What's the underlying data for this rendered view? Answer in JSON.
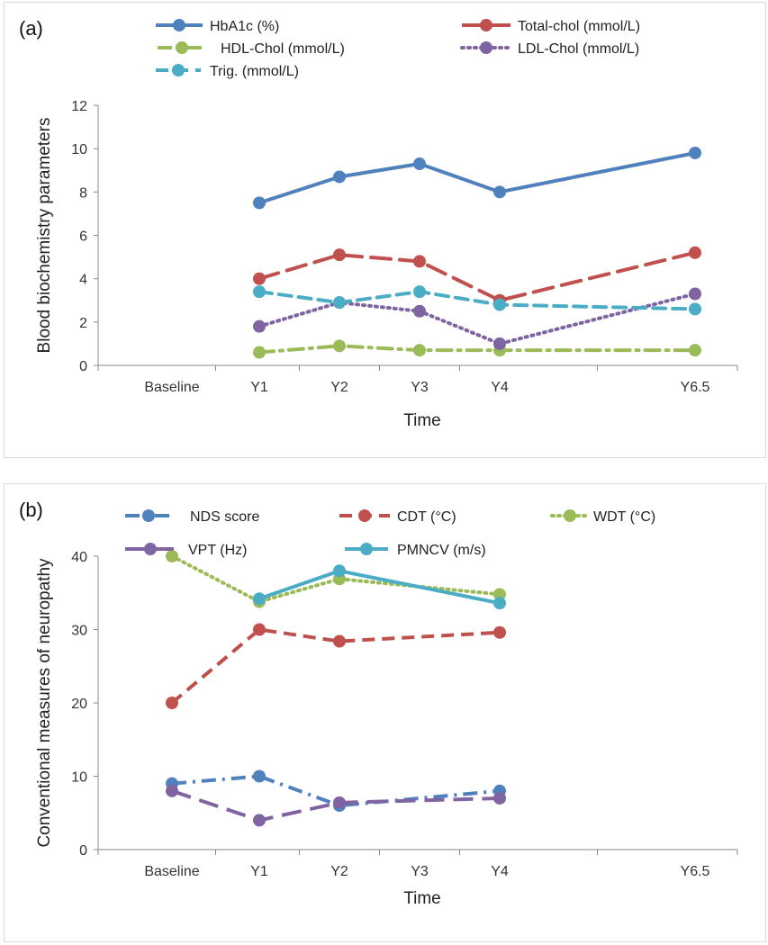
{
  "chart_data": [
    {
      "type": "line",
      "panel_label": "(a)",
      "categories": [
        "Baseline",
        "Y1",
        "Y2",
        "Y3",
        "Y4",
        "Y6.5"
      ],
      "xlabel": "Time",
      "ylabel": "Blood biochemistry parameters",
      "ylim": [
        0,
        12
      ],
      "yticks": [
        "0",
        "2",
        "4",
        "6",
        "8",
        "10",
        "12"
      ],
      "series": [
        {
          "name": "HbA1c (%)",
          "color": "#4f81bd",
          "dash": "solid",
          "x": [
            "Y1",
            "Y2",
            "Y3",
            "Y4",
            "Y6.5"
          ],
          "values": [
            7.5,
            8.7,
            9.3,
            8.0,
            9.8
          ]
        },
        {
          "name": "Total-chol (mmol/L)",
          "color": "#c0504d",
          "dash": "long-dash",
          "x": [
            "Y1",
            "Y2",
            "Y3",
            "Y4",
            "Y6.5"
          ],
          "values": [
            4.0,
            5.1,
            4.8,
            3.0,
            5.2
          ]
        },
        {
          "name": "HDL-Chol (mmol/L)",
          "color": "#9bbb59",
          "dash": "dash-dot",
          "x": [
            "Y1",
            "Y2",
            "Y3",
            "Y4",
            "Y6.5"
          ],
          "values": [
            0.6,
            0.9,
            0.7,
            0.7,
            0.7
          ]
        },
        {
          "name": "LDL-Chol (mmol/L)",
          "color": "#8064a2",
          "dash": "dotted",
          "x": [
            "Y1",
            "Y2",
            "Y3",
            "Y4",
            "Y6.5"
          ],
          "values": [
            1.8,
            2.9,
            2.5,
            1.0,
            3.3
          ]
        },
        {
          "name": "Trig. (mmol/L)",
          "color": "#4bacc6",
          "dash": "dash",
          "x": [
            "Y1",
            "Y2",
            "Y3",
            "Y4",
            "Y6.5"
          ],
          "values": [
            3.4,
            2.9,
            3.4,
            2.8,
            2.6
          ]
        }
      ]
    },
    {
      "type": "line",
      "panel_label": "(b)",
      "categories": [
        "Baseline",
        "Y1",
        "Y2",
        "Y3",
        "Y4",
        "Y6.5"
      ],
      "xlabel": "Time",
      "ylabel": "Conventional measures of neuropathy",
      "ylim": [
        0,
        40
      ],
      "yticks": [
        "0",
        "10",
        "20",
        "30",
        "40"
      ],
      "series": [
        {
          "name": "NDS score",
          "color": "#4f81bd",
          "dash": "dash-dot",
          "x": [
            "Baseline",
            "Y1",
            "Y2",
            "Y4"
          ],
          "values": [
            9,
            10,
            6,
            8
          ]
        },
        {
          "name": "CDT (°C)",
          "color": "#c0504d",
          "dash": "dash",
          "x": [
            "Baseline",
            "Y1",
            "Y2",
            "Y4"
          ],
          "values": [
            20,
            30,
            28.4,
            29.6
          ]
        },
        {
          "name": "WDT (°C)",
          "color": "#9bbb59",
          "dash": "dotted",
          "x": [
            "Baseline",
            "Y1",
            "Y2",
            "Y4"
          ],
          "values": [
            40,
            33.8,
            36.9,
            34.8
          ]
        },
        {
          "name": "VPT (Hz)",
          "color": "#8064a2",
          "dash": "long-dash",
          "x": [
            "Baseline",
            "Y1",
            "Y2",
            "Y4"
          ],
          "values": [
            8,
            4,
            6.4,
            7
          ]
        },
        {
          "name": "PMNCV (m/s)",
          "color": "#4bacc6",
          "dash": "solid",
          "x": [
            "Y1",
            "Y2",
            "Y4"
          ],
          "values": [
            34.2,
            38,
            33.6
          ]
        }
      ]
    }
  ]
}
